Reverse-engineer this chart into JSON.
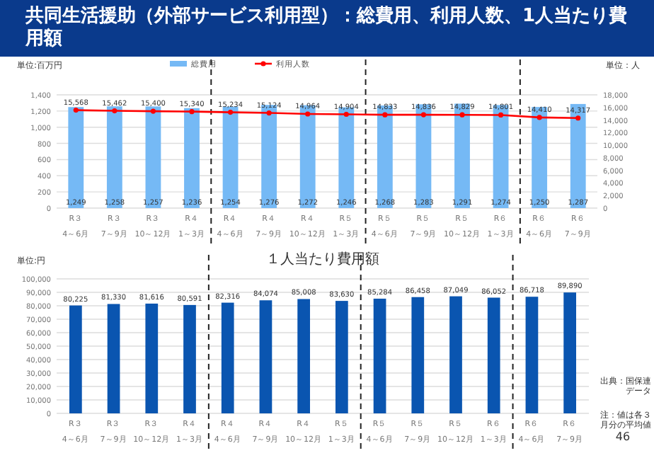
{
  "chart_data": [
    {
      "type": "bar",
      "title": "共同生活援助（外部サービス利用型）：総費用、利用人数、1人当たり費用額",
      "ylabel": "単位:百万円",
      "y2label": "単位：人",
      "categories": [
        "R３\n4～6月",
        "R３\n7～9月",
        "R３\n10～12月",
        "R４\n1～3月",
        "R４\n4～6月",
        "R４\n7～9月",
        "R４\n10～12月",
        "R５\n1～3月",
        "R５\n4～6月",
        "R５\n7～9月",
        "R５\n10～12月",
        "R６\n1～3月",
        "R６\n4～6月",
        "R６\n7～9月"
      ],
      "series": [
        {
          "name": "総費用",
          "color": "#75b9f5",
          "values": [
            1249,
            1258,
            1257,
            1236,
            1254,
            1276,
            1272,
            1246,
            1268,
            1283,
            1291,
            1274,
            1250,
            1287
          ],
          "value_labels": [
            "1,249",
            "1,258",
            "1,257",
            "1,236",
            "1,254",
            "1,276",
            "1,272",
            "1,246",
            "1,268",
            "1,283",
            "1,291",
            "1,274",
            "1,250",
            "1,287"
          ]
        },
        {
          "name": "利用人数",
          "type": "line",
          "axis": "y2",
          "color": "#ff0000",
          "values": [
            15568,
            15462,
            15400,
            15340,
            15234,
            15124,
            14964,
            14904,
            14833,
            14836,
            14829,
            14801,
            14410,
            14317
          ],
          "value_labels": [
            "15,568",
            "15,462",
            "15,400",
            "15,340",
            "15,234",
            "15,124",
            "14,964",
            "14,904",
            "14,833",
            "14,836",
            "14,829",
            "14,801",
            "14,410",
            "14,317"
          ]
        }
      ],
      "ylim": [
        0,
        1400
      ],
      "yticks": [
        0,
        200,
        400,
        600,
        800,
        {
          "value": 1000,
          "label": "1,000"
        },
        {
          "value": 1200,
          "label": "1,200"
        },
        {
          "value": 1400,
          "label": "1,400"
        }
      ],
      "y2lim": [
        0,
        18000
      ],
      "y2ticks": [
        0,
        {
          "value": 2000,
          "label": "2,000"
        },
        {
          "value": 4000,
          "label": "4,000"
        },
        {
          "value": 6000,
          "label": "6,000"
        },
        {
          "value": 8000,
          "label": "8,000"
        },
        {
          "value": 10000,
          "label": "10,000"
        },
        {
          "value": 12000,
          "label": "12,000"
        },
        {
          "value": 14000,
          "label": "14,000"
        },
        {
          "value": 16000,
          "label": "16,000"
        },
        {
          "value": 18000,
          "label": "18,000"
        }
      ],
      "grid": "y",
      "legend": "top",
      "marker": "circle"
    },
    {
      "type": "bar",
      "title": "１人当たり費用額",
      "ylabel": "単位:円",
      "categories": [
        "R３\n4～6月",
        "R３\n7～9月",
        "R３\n10～12月",
        "R４\n1～3月",
        "R４\n4～6月",
        "R４\n7～9月",
        "R４\n10～12月",
        "R５\n1～3月",
        "R５\n4～6月",
        "R５\n7～9月",
        "R５\n10～12月",
        "R６\n1～3月",
        "R６\n4～6月",
        "R６\n7～9月"
      ],
      "series": [
        {
          "type": "bar",
          "color": "#0a55b0",
          "values": [
            80225,
            81330,
            81616,
            80591,
            82316,
            84074,
            85008,
            83630,
            85284,
            86458,
            87049,
            86052,
            86718,
            89890
          ],
          "value_labels": [
            "80,225",
            "81,330",
            "81,616",
            "80,591",
            "82,316",
            "84,074",
            "85,008",
            "83,630",
            "85,284",
            "86,458",
            "87,049",
            "86,052",
            "86,718",
            "89,890"
          ]
        }
      ],
      "ylim": [
        0,
        100000
      ],
      "yticks": [
        0,
        {
          "value": 10000,
          "label": "10,000"
        },
        {
          "value": 20000,
          "label": "20,000"
        },
        {
          "value": 30000,
          "label": "30,000"
        },
        {
          "value": 40000,
          "label": "40,000"
        },
        {
          "value": 50000,
          "label": "50,000"
        },
        {
          "value": 60000,
          "label": "60,000"
        },
        {
          "value": 70000,
          "label": "70,000"
        },
        {
          "value": 80000,
          "label": "80,000"
        },
        {
          "value": 90000,
          "label": "90,000"
        },
        {
          "value": 100000,
          "label": "100,000"
        }
      ],
      "grid": "y",
      "annotations": [
        "出典：国保連データ",
        "注：値は各３月分の平均値",
        "46"
      ]
    }
  ]
}
